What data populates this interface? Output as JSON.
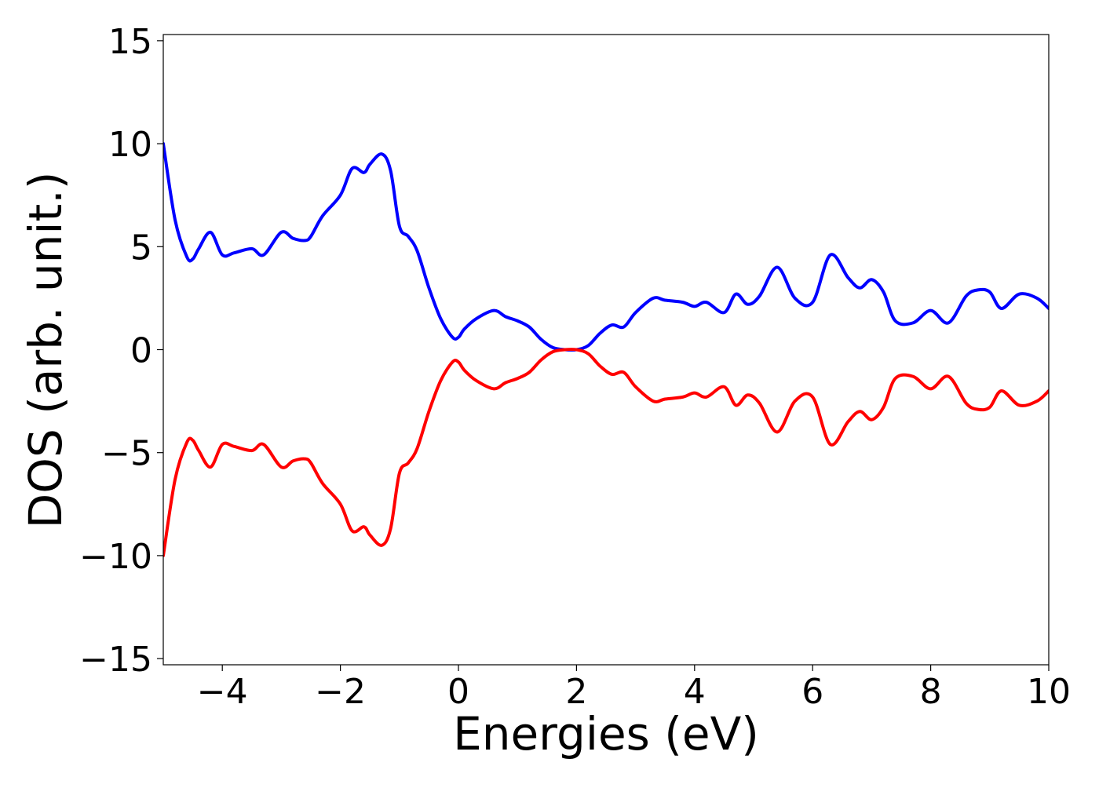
{
  "chart_data": {
    "type": "line",
    "xlabel": "Energies (eV)",
    "ylabel": "DOS (arb. unit.)",
    "xlim": [
      -5,
      10
    ],
    "ylim": [
      -15.3,
      15.3
    ],
    "xticks": [
      -4,
      -2,
      0,
      2,
      4,
      6,
      8,
      10
    ],
    "yticks": [
      -15,
      -10,
      -5,
      0,
      5,
      10,
      15
    ],
    "xtick_labels": [
      "−4",
      "−2",
      "0",
      "2",
      "4",
      "6",
      "8",
      "10"
    ],
    "ytick_labels": [
      "−15",
      "−10",
      "−5",
      "0",
      "5",
      "10",
      "15"
    ],
    "grid": false,
    "legend": "none",
    "series": [
      {
        "color": "#0000ff",
        "x": [
          -5.0,
          -4.8,
          -4.6,
          -4.5,
          -4.4,
          -4.2,
          -4.0,
          -3.8,
          -3.5,
          -3.3,
          -3.0,
          -2.8,
          -2.6,
          -2.5,
          -2.3,
          -2.0,
          -1.8,
          -1.6,
          -1.5,
          -1.3,
          -1.15,
          -1.0,
          -0.85,
          -0.7,
          -0.5,
          -0.3,
          -0.1,
          0.0,
          0.1,
          0.3,
          0.6,
          0.8,
          1.0,
          1.2,
          1.4,
          1.6,
          1.8,
          2.0,
          2.2,
          2.4,
          2.6,
          2.8,
          3.0,
          3.3,
          3.5,
          3.8,
          4.0,
          4.2,
          4.5,
          4.7,
          4.9,
          5.1,
          5.4,
          5.7,
          6.0,
          6.3,
          6.6,
          6.8,
          7.0,
          7.2,
          7.4,
          7.7,
          8.0,
          8.3,
          8.6,
          8.8,
          9.0,
          9.2,
          9.5,
          9.8,
          10.0
        ],
        "values": [
          10.0,
          6.3,
          4.5,
          4.4,
          4.9,
          5.7,
          4.6,
          4.7,
          4.9,
          4.6,
          5.7,
          5.4,
          5.3,
          5.5,
          6.5,
          7.5,
          8.8,
          8.6,
          9.0,
          9.5,
          8.7,
          6.0,
          5.5,
          4.8,
          3.0,
          1.5,
          0.6,
          0.6,
          1.0,
          1.5,
          1.9,
          1.6,
          1.4,
          1.1,
          0.5,
          0.1,
          0.0,
          0.0,
          0.2,
          0.8,
          1.2,
          1.1,
          1.8,
          2.5,
          2.4,
          2.3,
          2.1,
          2.3,
          1.8,
          2.7,
          2.2,
          2.6,
          4.0,
          2.5,
          2.3,
          4.6,
          3.5,
          3.0,
          3.4,
          2.8,
          1.4,
          1.3,
          1.9,
          1.3,
          2.6,
          2.9,
          2.8,
          2.0,
          2.7,
          2.5,
          2.0
        ]
      },
      {
        "color": "#ff0000",
        "x": [
          -5.0,
          -4.8,
          -4.6,
          -4.5,
          -4.4,
          -4.2,
          -4.0,
          -3.8,
          -3.5,
          -3.3,
          -3.0,
          -2.8,
          -2.6,
          -2.5,
          -2.3,
          -2.0,
          -1.8,
          -1.6,
          -1.5,
          -1.3,
          -1.15,
          -1.0,
          -0.85,
          -0.7,
          -0.5,
          -0.3,
          -0.1,
          0.0,
          0.1,
          0.3,
          0.6,
          0.8,
          1.0,
          1.2,
          1.4,
          1.6,
          1.8,
          2.0,
          2.2,
          2.4,
          2.6,
          2.8,
          3.0,
          3.3,
          3.5,
          3.8,
          4.0,
          4.2,
          4.5,
          4.7,
          4.9,
          5.1,
          5.4,
          5.7,
          6.0,
          6.3,
          6.6,
          6.8,
          7.0,
          7.2,
          7.4,
          7.7,
          8.0,
          8.3,
          8.6,
          8.8,
          9.0,
          9.2,
          9.5,
          9.8,
          10.0
        ],
        "values": [
          -10.0,
          -6.3,
          -4.5,
          -4.4,
          -4.9,
          -5.7,
          -4.6,
          -4.7,
          -4.9,
          -4.6,
          -5.7,
          -5.4,
          -5.3,
          -5.5,
          -6.5,
          -7.5,
          -8.8,
          -8.6,
          -9.0,
          -9.5,
          -8.7,
          -6.0,
          -5.5,
          -4.8,
          -3.0,
          -1.5,
          -0.6,
          -0.6,
          -1.0,
          -1.5,
          -1.9,
          -1.6,
          -1.4,
          -1.1,
          -0.5,
          -0.1,
          0.0,
          0.0,
          -0.2,
          -0.8,
          -1.2,
          -1.1,
          -1.8,
          -2.5,
          -2.4,
          -2.3,
          -2.1,
          -2.3,
          -1.8,
          -2.7,
          -2.2,
          -2.6,
          -4.0,
          -2.5,
          -2.3,
          -4.6,
          -3.5,
          -3.0,
          -3.4,
          -2.8,
          -1.4,
          -1.3,
          -1.9,
          -1.3,
          -2.6,
          -2.9,
          -2.8,
          -2.0,
          -2.7,
          -2.5,
          -2.0
        ]
      }
    ]
  }
}
